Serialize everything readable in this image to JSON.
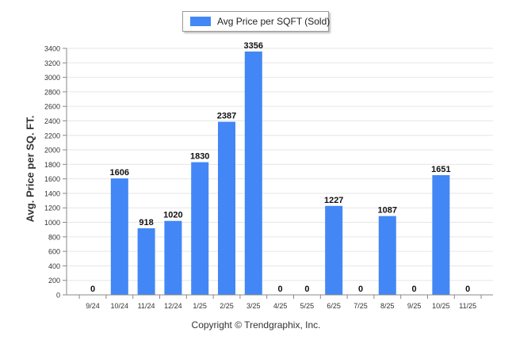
{
  "chart_data": {
    "type": "bar",
    "categories": [
      "9/24",
      "10/24",
      "11/24",
      "12/24",
      "1/25",
      "2/25",
      "3/25",
      "4/25",
      "5/25",
      "6/25",
      "7/25",
      "8/25",
      "9/25",
      "10/25",
      "11/25"
    ],
    "series": [
      {
        "name": "Avg Price per SQFT (Sold)",
        "values": [
          0,
          1606,
          918,
          1020,
          1830,
          2387,
          3356,
          0,
          0,
          1227,
          0,
          1087,
          0,
          1651,
          0
        ]
      }
    ],
    "title": "",
    "xlabel": "",
    "ylabel": "Avg. Price per SQ. FT.",
    "ylim": [
      0,
      3400
    ],
    "yticks": [
      0,
      200,
      400,
      600,
      800,
      1000,
      1200,
      1400,
      1600,
      1800,
      2000,
      2200,
      2400,
      2600,
      2800,
      3000,
      3200,
      3400
    ],
    "grid": true,
    "legend": "top-center",
    "bar_color": "#4287f5",
    "credit": "Copyright © Trendgraphix, Inc."
  }
}
